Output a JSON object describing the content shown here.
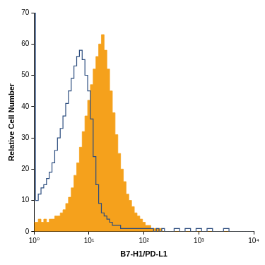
{
  "chart_data": {
    "type": "line",
    "x_label": "B7-H1/PD-L1",
    "y_label": "Relative Cell Number",
    "x": [
      1,
      1.122,
      1.259,
      1.413,
      1.585,
      1.778,
      1.995,
      2.239,
      2.512,
      2.818,
      3.162,
      3.548,
      3.981,
      4.467,
      5.012,
      5.623,
      6.31,
      7.079,
      7.943,
      8.913,
      10,
      11.22,
      12.59,
      14.13,
      15.85,
      17.78,
      19.95,
      22.39,
      25.12,
      28.18,
      31.62,
      35.48,
      39.81,
      44.67,
      50.12,
      56.23,
      63.1,
      70.79,
      79.43,
      89.13,
      100,
      112.2,
      125.9,
      141.3,
      158.5,
      177.8,
      199.5,
      223.9,
      251.2,
      281.8,
      316.2,
      398.1,
      501.2,
      631,
      794.3,
      1000,
      1259,
      1585,
      1995,
      2512,
      3162,
      3981,
      5012,
      6310,
      7943,
      10000
    ],
    "series": [
      {
        "color": "#2b4c7e",
        "type": "line",
        "line_style": "steps",
        "values": [
          70,
          10,
          12,
          14,
          15,
          17,
          19,
          22,
          26,
          30,
          33,
          37,
          41,
          45,
          49,
          53,
          56,
          58,
          55,
          50,
          45,
          36,
          24,
          15,
          9,
          6,
          5,
          4,
          3,
          2,
          2,
          2,
          1,
          1,
          1,
          1,
          1,
          1,
          1,
          1,
          1,
          1,
          1,
          1,
          0,
          1,
          0,
          1,
          0,
          0,
          0,
          1,
          0,
          1,
          0,
          1,
          0,
          1,
          0,
          0,
          1,
          0,
          0,
          0,
          0,
          0
        ]
      },
      {
        "color": "#f5a11c",
        "type": "area",
        "line_style": "steps",
        "values": [
          3,
          3,
          4,
          3,
          4,
          3,
          4,
          4,
          5,
          5,
          6,
          7,
          9,
          11,
          14,
          18,
          22,
          27,
          32,
          37,
          42,
          47,
          52,
          56,
          60,
          63,
          58,
          52,
          45,
          38,
          31,
          25,
          20,
          16,
          12,
          10,
          8,
          6,
          5,
          4,
          3,
          2,
          2,
          1,
          1,
          1,
          1,
          0,
          0,
          0,
          0,
          0,
          0,
          0,
          0,
          0,
          0,
          0,
          0,
          0,
          0,
          0,
          0,
          0,
          0,
          0
        ]
      }
    ],
    "xlim": [
      1,
      10000
    ],
    "xticks": [
      {
        "value": 1,
        "label": "10⁰"
      },
      {
        "value": 10,
        "label": "10¹"
      },
      {
        "value": 100,
        "label": "10²"
      },
      {
        "value": 1000,
        "label": "10³"
      },
      {
        "value": 10000,
        "label": "10⁴"
      }
    ],
    "ylim": [
      0,
      70
    ],
    "yticks": [
      0,
      10,
      20,
      30,
      40,
      50,
      60,
      70
    ],
    "log": "x",
    "grid": false
  }
}
